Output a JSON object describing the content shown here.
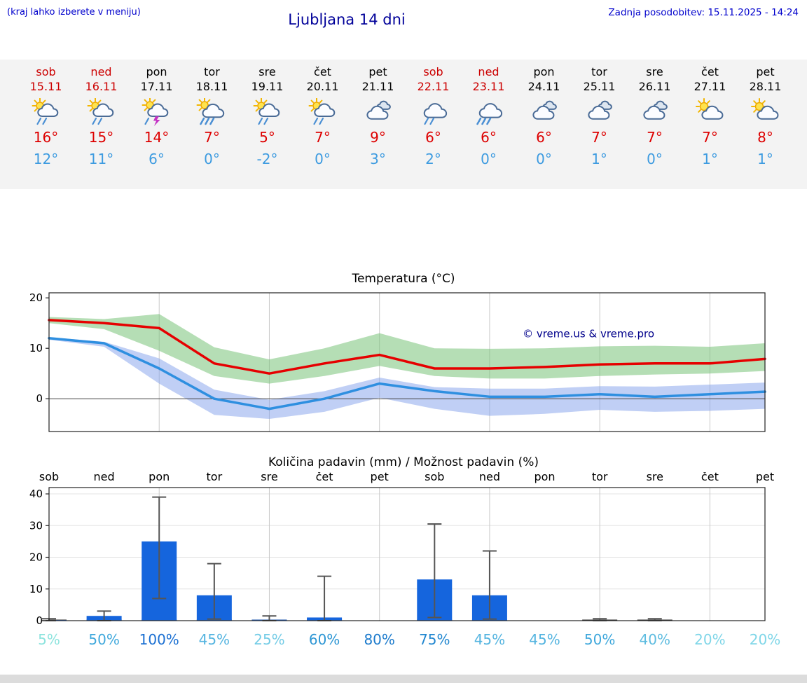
{
  "header": {
    "menu_hint": "(kraj lahko izberete v meniju)",
    "title": "Ljubljana 14 dni",
    "last_update": "Zadnja posodobitev: 15.11.2025 - 14:24"
  },
  "colors": {
    "weekend_day": "#cc0000",
    "weekday_day": "#000000",
    "high_temp": "#dd0000",
    "low_temp": "#3d9be0",
    "max_line": "#e60000",
    "min_line": "#2e8fe0",
    "max_band": "rgba(120,195,120,0.55)",
    "min_band": "rgba(130,160,235,0.5)",
    "bar_fill": "#1565dd",
    "whisker": "#555555",
    "watermark": "#00008b"
  },
  "forecast": {
    "days": [
      {
        "name": "sob",
        "date": "15.11",
        "weekend": true,
        "icon": "sun-cloud-rain",
        "high": "16°",
        "low": "12°"
      },
      {
        "name": "ned",
        "date": "16.11",
        "weekend": true,
        "icon": "sun-cloud-rain",
        "high": "15°",
        "low": "11°"
      },
      {
        "name": "pon",
        "date": "17.11",
        "weekend": false,
        "icon": "sun-cloud-storm",
        "high": "14°",
        "low": "6°"
      },
      {
        "name": "tor",
        "date": "18.11",
        "weekend": false,
        "icon": "sun-cloud-heavyrain",
        "high": "7°",
        "low": "0°"
      },
      {
        "name": "sre",
        "date": "19.11",
        "weekend": false,
        "icon": "sun-cloud-rain",
        "high": "5°",
        "low": "-2°"
      },
      {
        "name": "čet",
        "date": "20.11",
        "weekend": false,
        "icon": "sun-cloud-rain",
        "high": "7°",
        "low": "0°"
      },
      {
        "name": "pet",
        "date": "21.11",
        "weekend": false,
        "icon": "cloudy",
        "high": "9°",
        "low": "3°"
      },
      {
        "name": "sob",
        "date": "22.11",
        "weekend": true,
        "icon": "cloud-rain",
        "high": "6°",
        "low": "2°"
      },
      {
        "name": "ned",
        "date": "23.11",
        "weekend": true,
        "icon": "cloud-heavyrain",
        "high": "6°",
        "low": "0°"
      },
      {
        "name": "pon",
        "date": "24.11",
        "weekend": false,
        "icon": "cloudy",
        "high": "6°",
        "low": "0°"
      },
      {
        "name": "tor",
        "date": "25.11",
        "weekend": false,
        "icon": "cloudy",
        "high": "7°",
        "low": "1°"
      },
      {
        "name": "sre",
        "date": "26.11",
        "weekend": false,
        "icon": "cloudy",
        "high": "7°",
        "low": "0°"
      },
      {
        "name": "čet",
        "date": "27.11",
        "weekend": false,
        "icon": "sun-cloud",
        "high": "7°",
        "low": "1°"
      },
      {
        "name": "pet",
        "date": "28.11",
        "weekend": false,
        "icon": "sun-cloud",
        "high": "8°",
        "low": "1°"
      }
    ]
  },
  "chart_data": [
    {
      "type": "line",
      "title": "Temperatura (°C)",
      "categories": [
        "sob 15.11",
        "ned 16.11",
        "pon 17.11",
        "tor 18.11",
        "sre 19.11",
        "čet 20.11",
        "pet 21.11",
        "sob 22.11",
        "ned 23.11",
        "pon 24.11",
        "tor 25.11",
        "sre 26.11",
        "čet 27.11",
        "pet 28.11"
      ],
      "ylim": [
        -6.5,
        21
      ],
      "yticks": [
        0,
        10,
        20
      ],
      "series": [
        {
          "name": "max-temp",
          "color": "#e60000",
          "values": [
            15.6,
            15,
            14,
            7,
            5,
            7,
            8.7,
            6,
            6,
            6.3,
            6.8,
            7,
            7,
            7.9
          ]
        },
        {
          "name": "min-temp",
          "color": "#2e8fe0",
          "values": [
            12,
            11,
            6,
            0,
            -2,
            0,
            3,
            1.5,
            0.4,
            0.4,
            0.9,
            0.4,
            0.9,
            1.4
          ]
        }
      ],
      "bands": [
        {
          "name": "max-range",
          "color": "rgba(120,195,120,0.55)",
          "upper": [
            16.2,
            15.8,
            16.8,
            10.2,
            7.8,
            10,
            13,
            10,
            9.9,
            10,
            10.4,
            10.5,
            10.3,
            11
          ],
          "lower": [
            15,
            13.8,
            9.5,
            4.5,
            3,
            4.5,
            6.5,
            4.5,
            4,
            4,
            4.5,
            4.8,
            5,
            5.5
          ]
        },
        {
          "name": "min-range",
          "color": "rgba(130,160,235,0.5)",
          "upper": [
            12.2,
            11.3,
            8,
            1.8,
            -0.2,
            1.5,
            4.2,
            2.3,
            2,
            2,
            2.5,
            2.4,
            2.8,
            3.2
          ],
          "lower": [
            11.7,
            10.3,
            3,
            -3.2,
            -4,
            -2.6,
            0.2,
            -2,
            -3.4,
            -3,
            -2.2,
            -2.6,
            -2.4,
            -2
          ]
        }
      ],
      "watermark": "© vreme.us & vreme.pro",
      "grid": "vertical lines every 2 days, zero line emphasized"
    },
    {
      "type": "bar",
      "title": "Količina padavin (mm) / Možnost padavin (%)",
      "categories": [
        "sob",
        "ned",
        "pon",
        "tor",
        "sre",
        "čet",
        "pet",
        "sob",
        "ned",
        "pon",
        "tor",
        "sre",
        "čet",
        "pet"
      ],
      "ylim": [
        0,
        42
      ],
      "yticks": [
        0,
        10,
        20,
        30,
        40
      ],
      "values": [
        0.2,
        1.5,
        25,
        8,
        0.3,
        1,
        0,
        13,
        8,
        0,
        0.1,
        0.1,
        0,
        0
      ],
      "whisker_low": [
        0,
        0,
        7,
        0.5,
        0,
        0,
        0,
        1,
        0.5,
        0,
        0,
        0,
        0,
        0
      ],
      "whisker_high": [
        0.6,
        3,
        39,
        18,
        1.5,
        14,
        0,
        30.5,
        22,
        0,
        0.6,
        0.6,
        0,
        0
      ],
      "probabilities": [
        {
          "text": "5%",
          "color": "#8de4de"
        },
        {
          "text": "50%",
          "color": "#3fa8dc"
        },
        {
          "text": "100%",
          "color": "#1a6fd2"
        },
        {
          "text": "45%",
          "color": "#54b4e0"
        },
        {
          "text": "25%",
          "color": "#74cce6"
        },
        {
          "text": "60%",
          "color": "#2d96d4"
        },
        {
          "text": "80%",
          "color": "#1b7acc"
        },
        {
          "text": "75%",
          "color": "#2287d0"
        },
        {
          "text": "45%",
          "color": "#54b4e0"
        },
        {
          "text": "45%",
          "color": "#54b4e0"
        },
        {
          "text": "50%",
          "color": "#3fa8dc"
        },
        {
          "text": "40%",
          "color": "#5ebce0"
        },
        {
          "text": "20%",
          "color": "#7fd6e8"
        },
        {
          "text": "20%",
          "color": "#7fd6e8"
        }
      ]
    }
  ]
}
